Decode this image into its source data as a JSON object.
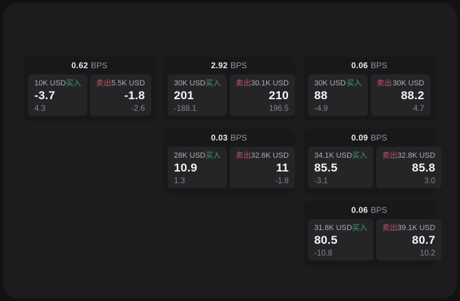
{
  "labels": {
    "bps_unit": "BPS",
    "buy": "买入",
    "sell": "卖出"
  },
  "colors": {
    "page_outer_bg": "#121214",
    "surface_bg": "#1c1c1e",
    "card_bg": "#18181a",
    "panel_bg": "#252528",
    "buy_green": "#41a269",
    "sell_red": "#c25468",
    "primary_text": "#f4f4f6",
    "muted_text": "#94949a"
  },
  "cards": [
    {
      "bps": "0.62",
      "buy": {
        "size": "10K USD",
        "value": "-3.7",
        "delta": "4.3"
      },
      "sell": {
        "size": "5.5K USD",
        "value": "-1.8",
        "delta": "-2.6"
      }
    },
    {
      "bps": "2.92",
      "buy": {
        "size": "30K USD",
        "value": "201",
        "delta": "-188.1"
      },
      "sell": {
        "size": "30.1K USD",
        "value": "210",
        "delta": "196.5"
      }
    },
    {
      "bps": "0.06",
      "buy": {
        "size": "30K USD",
        "value": "88",
        "delta": "-4.9"
      },
      "sell": {
        "size": "30K USD",
        "value": "88.2",
        "delta": "4.7"
      }
    },
    {
      "bps": "0.03",
      "buy": {
        "size": "28K USD",
        "value": "10.9",
        "delta": "1.3"
      },
      "sell": {
        "size": "32.6K USD",
        "value": "11",
        "delta": "-1.8"
      }
    },
    {
      "bps": "0.09",
      "buy": {
        "size": "34.1K USD",
        "value": "85.5",
        "delta": "-3.1"
      },
      "sell": {
        "size": "32.8K USD",
        "value": "85.8",
        "delta": "3.0"
      }
    },
    {
      "bps": "0.06",
      "buy": {
        "size": "31.8K USD",
        "value": "80.5",
        "delta": "-10.8"
      },
      "sell": {
        "size": "39.1K USD",
        "value": "80.7",
        "delta": "10.2"
      }
    }
  ]
}
